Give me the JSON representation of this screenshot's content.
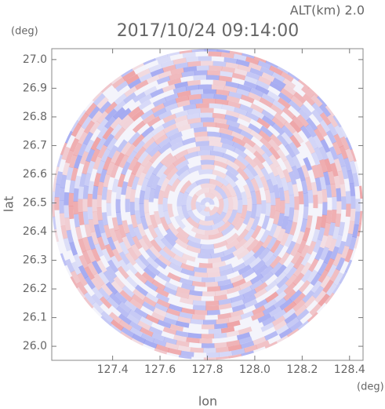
{
  "chart_data": {
    "type": "radar-ppi",
    "title": "2017/10/24 09:14:00",
    "subtitle": "ALT(km) 2.0",
    "y_unit": "(deg)",
    "x_unit": "(deg)",
    "ylabel": "lat",
    "xlabel": "lon",
    "xlim": [
      127.143,
      128.457
    ],
    "ylim": [
      25.951,
      27.038
    ],
    "xticks": [
      127.4,
      127.6,
      127.8,
      {
        "value": 128,
        "label": "128.0"
      },
      128.2,
      128.4
    ],
    "yticks": [
      {
        "value": 26,
        "label": "26.0"
      },
      26.1,
      26.2,
      26.3,
      26.4,
      26.5,
      26.6,
      26.7,
      26.8,
      26.9,
      {
        "value": 27,
        "label": "27.0"
      }
    ]
  }
}
